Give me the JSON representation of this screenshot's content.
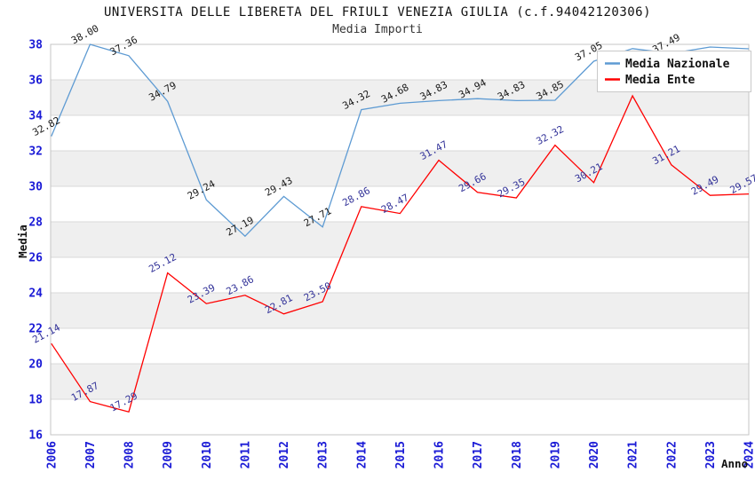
{
  "chart_data": {
    "type": "line",
    "title": "UNIVERSITA DELLE LIBERETA DEL FRIULI VENEZIA GIULIA (c.f.94042120306)",
    "subtitle": "Media Importi",
    "xlabel": "Anno",
    "ylabel": "Media",
    "x": [
      2006,
      2007,
      2008,
      2009,
      2010,
      2011,
      2012,
      2013,
      2014,
      2015,
      2016,
      2017,
      2018,
      2019,
      2020,
      2021,
      2022,
      2023,
      2024
    ],
    "ylim": [
      16,
      38
    ],
    "ytick_step": 2,
    "grid": "horizontal-gridlines-with-alternating-bands",
    "legend_position": "top-right",
    "series": [
      {
        "name": "Media Nazionale",
        "color": "#5e9bd3",
        "label_color": "#1a1a1a",
        "values": [
          32.82,
          38.0,
          37.36,
          34.79,
          29.24,
          27.19,
          29.43,
          27.71,
          34.32,
          34.68,
          34.83,
          34.94,
          34.83,
          34.85,
          37.05,
          37.76,
          37.49,
          37.85,
          37.75
        ],
        "labels": [
          "32.82",
          "38.00",
          "37.36",
          "34.79",
          "29.24",
          "27.19",
          "29.43",
          "27.71",
          "34.32",
          "34.68",
          "34.83",
          "34.94",
          "34.83",
          "34.85",
          "37.05",
          "",
          "37.49",
          "",
          ""
        ]
      },
      {
        "name": "Media Ente",
        "color": "#ff0000",
        "label_color": "#333399",
        "values": [
          21.14,
          17.87,
          17.29,
          25.12,
          23.39,
          23.86,
          22.81,
          23.5,
          28.86,
          28.47,
          31.47,
          29.66,
          29.35,
          32.32,
          30.21,
          35.1,
          31.21,
          29.49,
          29.57
        ],
        "labels": [
          "21.14",
          "17.87",
          "17.29",
          "25.12",
          "23.39",
          "23.86",
          "22.81",
          "23.50",
          "28.86",
          "28.47",
          "31.47",
          "29.66",
          "29.35",
          "32.32",
          "30.21",
          "",
          "31.21",
          "29.49",
          "29.57"
        ]
      }
    ],
    "colors": {
      "tick_label_blue": "#1a1ad6",
      "band_gray": "#efefef",
      "gridline": "#d9d9d9",
      "plot_border": "#c5c5c5",
      "legend_border": "#c9c9c9",
      "background": "#ffffff"
    }
  }
}
